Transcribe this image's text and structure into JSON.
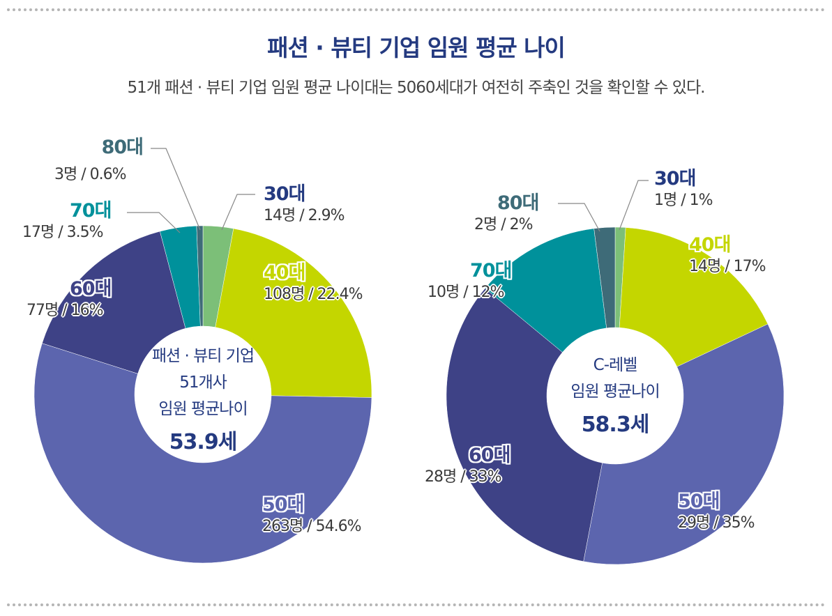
{
  "title": "패션 · 뷰티 기업 임원 평균 나이",
  "subtitle": "51개 패션 · 뷰티 기업 임원 평균 나이대는 5060세대가 여전히 주축인 것을 확인할 수 있다.",
  "colors": {
    "30대": "#7cbf78",
    "40대": "#c4d600",
    "50대": "#5c65ae",
    "60대": "#3e4286",
    "70대": "#00919b",
    "80대": "#3e6b78",
    "title": "#243a80"
  },
  "chart_data": [
    {
      "type": "pie",
      "donut": true,
      "center_text": [
        "패션 · 뷰티 기업",
        "51개사",
        "임원 평균나이"
      ],
      "center_value": "53.9세",
      "categories": [
        "30대",
        "40대",
        "50대",
        "60대",
        "70대",
        "80대"
      ],
      "counts": [
        14,
        108,
        263,
        77,
        17,
        3
      ],
      "values": [
        2.9,
        22.4,
        54.6,
        16,
        3.5,
        0.6
      ],
      "labels": [
        "14명 / 2.9%",
        "108명 / 22.4%",
        "263명 / 54.6%",
        "77명 / 16%",
        "17명 / 3.5%",
        "3명 / 0.6%"
      ]
    },
    {
      "type": "pie",
      "donut": true,
      "center_text": [
        "C-레벨",
        "임원 평균나이"
      ],
      "center_value": "58.3세",
      "categories": [
        "30대",
        "40대",
        "50대",
        "60대",
        "70대",
        "80대"
      ],
      "counts": [
        1,
        14,
        29,
        28,
        10,
        2
      ],
      "values": [
        1,
        17,
        35,
        33,
        12,
        2
      ],
      "labels": [
        "1명 / 1%",
        "14명 / 17%",
        "29명 / 35%",
        "28명 / 33%",
        "10명 / 12%",
        "2명 / 2%"
      ]
    }
  ]
}
